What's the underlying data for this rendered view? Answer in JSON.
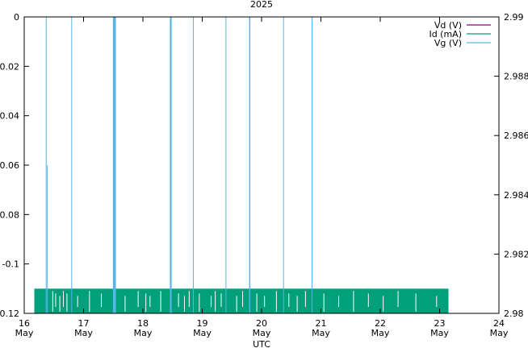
{
  "chart_data": {
    "type": "line",
    "title": "2025",
    "xlabel": "UTC",
    "ylabel_left": "",
    "ylabel_right": "",
    "x_range": [
      "16 May",
      "24 May"
    ],
    "x_ticks": [
      {
        "top": "16",
        "bottom": "May"
      },
      {
        "top": "17",
        "bottom": "May"
      },
      {
        "top": "18",
        "bottom": "May"
      },
      {
        "top": "19",
        "bottom": "May"
      },
      {
        "top": "20",
        "bottom": "May"
      },
      {
        "top": "21",
        "bottom": "May"
      },
      {
        "top": "22",
        "bottom": "May"
      },
      {
        "top": "23",
        "bottom": "May"
      },
      {
        "top": "24",
        "bottom": "May"
      }
    ],
    "ylim_left": [
      -0.12,
      0
    ],
    "y_ticks_left": [
      "0",
      "-0.02",
      "-0.04",
      "-0.06",
      "-0.08",
      "-0.1",
      "-0.12"
    ],
    "y_tick_values_left": [
      0,
      -0.02,
      -0.04,
      -0.06,
      -0.08,
      -0.1,
      -0.12
    ],
    "ylim_right": [
      2.98,
      2.99
    ],
    "y_ticks_right": [
      "2.99",
      "2.988",
      "2.986",
      "2.984",
      "2.982",
      "2.98"
    ],
    "y_tick_values_right": [
      2.99,
      2.988,
      2.986,
      2.984,
      2.982,
      2.98
    ],
    "grid": false,
    "legend_position": "top-right",
    "colors": {
      "vd": "#94007a",
      "id": "#00a07a",
      "vg": "#56b4e9"
    },
    "series": [
      {
        "name": "Vd (V)",
        "color": "#94007a",
        "values": []
      },
      {
        "name": "Id (mA)",
        "axis": "left",
        "color": "#00a07a",
        "value_range": [
          -0.12,
          -0.11
        ],
        "x_start_day": 16.17,
        "x_end_day": 23.15
      },
      {
        "name": "Vg (V)",
        "axis": "left",
        "color": "#56b4e9",
        "spikes": [
          {
            "x_day": 16.37,
            "y_top": 0
          },
          {
            "x_day": 16.39,
            "y_top": -0.06
          },
          {
            "x_day": 16.8,
            "y_top": 0
          },
          {
            "x_day": 17.52,
            "y_top": 0,
            "width_days": 0.05
          },
          {
            "x_day": 18.47,
            "y_top": 0,
            "width_days": 0.03
          },
          {
            "x_day": 18.85,
            "y_top": 0
          },
          {
            "x_day": 19.4,
            "y_top": 0
          },
          {
            "x_day": 19.8,
            "y_top": 0,
            "width_days": 0.02
          },
          {
            "x_day": 20.37,
            "y_top": 0
          },
          {
            "x_day": 20.85,
            "y_top": 0
          }
        ]
      }
    ]
  }
}
